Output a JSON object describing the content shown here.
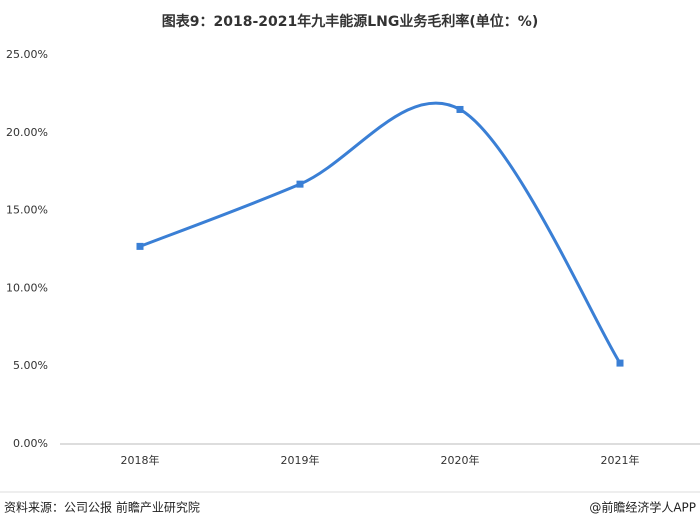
{
  "chart_data": {
    "type": "line",
    "title": "图表9：2018-2021年九丰能源LNG业务毛利率(单位：%)",
    "categories": [
      "2018年",
      "2019年",
      "2020年",
      "2021年"
    ],
    "values": [
      12.7,
      16.7,
      21.5,
      5.2
    ],
    "color": "#3a7fd5",
    "smooth": true,
    "grid": false,
    "ylim": [
      0,
      25
    ],
    "yticks": [
      {
        "value": 0,
        "label": "0.00%"
      },
      {
        "value": 5,
        "label": "5.00%"
      },
      {
        "value": 10,
        "label": "10.00%"
      },
      {
        "value": 15,
        "label": "15.00%"
      },
      {
        "value": 20,
        "label": "20.00%"
      },
      {
        "value": 25,
        "label": "25.00%"
      }
    ],
    "source": "资料来源：公司公报 前瞻产业研究院",
    "credit": "@前瞻经济学人APP"
  }
}
